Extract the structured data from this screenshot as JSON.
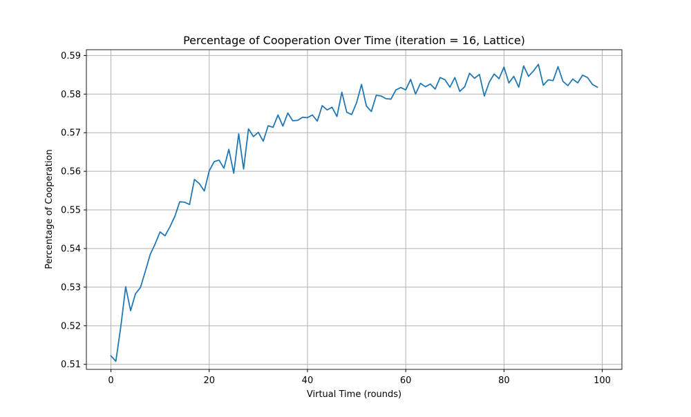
{
  "chart_data": {
    "type": "line",
    "title": "Percentage of Cooperation Over Time (iteration = 16, Lattice)",
    "xlabel": "Virtual Time (rounds)",
    "ylabel": "Percentage of Cooperation",
    "xlim": [
      -5,
      104
    ],
    "ylim": [
      0.5087,
      0.5915
    ],
    "xticks": [
      0,
      20,
      40,
      60,
      80,
      100
    ],
    "xtick_labels": [
      "0",
      "20",
      "40",
      "60",
      "80",
      "100"
    ],
    "yticks": [
      0.51,
      0.52,
      0.53,
      0.54,
      0.55,
      0.56,
      0.57,
      0.58,
      0.59
    ],
    "ytick_labels": [
      "0.51",
      "0.52",
      "0.53",
      "0.54",
      "0.55",
      "0.56",
      "0.57",
      "0.58",
      "0.59"
    ],
    "grid": true,
    "series": [
      {
        "color": "#1f77b4",
        "x": [
          0,
          1,
          2,
          3,
          4,
          5,
          6,
          7,
          8,
          9,
          10,
          11,
          12,
          13,
          14,
          15,
          16,
          17,
          18,
          19,
          20,
          21,
          22,
          23,
          24,
          25,
          26,
          27,
          28,
          29,
          30,
          31,
          32,
          33,
          34,
          35,
          36,
          37,
          38,
          39,
          40,
          41,
          42,
          43,
          44,
          45,
          46,
          47,
          48,
          49,
          50,
          51,
          52,
          53,
          54,
          55,
          56,
          57,
          58,
          59,
          60,
          61,
          62,
          63,
          64,
          65,
          66,
          67,
          68,
          69,
          70,
          71,
          72,
          73,
          74,
          75,
          76,
          77,
          78,
          79,
          80,
          81,
          82,
          83,
          84,
          85,
          86,
          87,
          88,
          89,
          90,
          91,
          92,
          93,
          94,
          95,
          96,
          97,
          98,
          99
        ],
        "y": [
          0.5122,
          0.5108,
          0.5197,
          0.5301,
          0.5239,
          0.5283,
          0.5299,
          0.5341,
          0.5385,
          0.5412,
          0.5443,
          0.5433,
          0.5456,
          0.5483,
          0.5521,
          0.552,
          0.5514,
          0.5579,
          0.5568,
          0.5549,
          0.5601,
          0.5625,
          0.5629,
          0.5608,
          0.5657,
          0.5595,
          0.5697,
          0.5606,
          0.571,
          0.569,
          0.5701,
          0.5678,
          0.5718,
          0.5714,
          0.5746,
          0.5717,
          0.5751,
          0.5731,
          0.5732,
          0.574,
          0.5739,
          0.5746,
          0.573,
          0.577,
          0.5759,
          0.5766,
          0.5742,
          0.5805,
          0.5753,
          0.5747,
          0.5778,
          0.5825,
          0.5769,
          0.5755,
          0.5797,
          0.5795,
          0.5788,
          0.5787,
          0.5811,
          0.5817,
          0.5811,
          0.5838,
          0.58,
          0.5828,
          0.5819,
          0.5826,
          0.5813,
          0.5843,
          0.5837,
          0.5818,
          0.5843,
          0.5807,
          0.5819,
          0.5854,
          0.5841,
          0.5851,
          0.5795,
          0.5831,
          0.5852,
          0.584,
          0.587,
          0.5829,
          0.5846,
          0.5818,
          0.5873,
          0.5846,
          0.586,
          0.5877,
          0.5823,
          0.5837,
          0.5835,
          0.5871,
          0.5833,
          0.5822,
          0.5839,
          0.5829,
          0.5849,
          0.5843,
          0.5825,
          0.5818
        ]
      }
    ]
  }
}
